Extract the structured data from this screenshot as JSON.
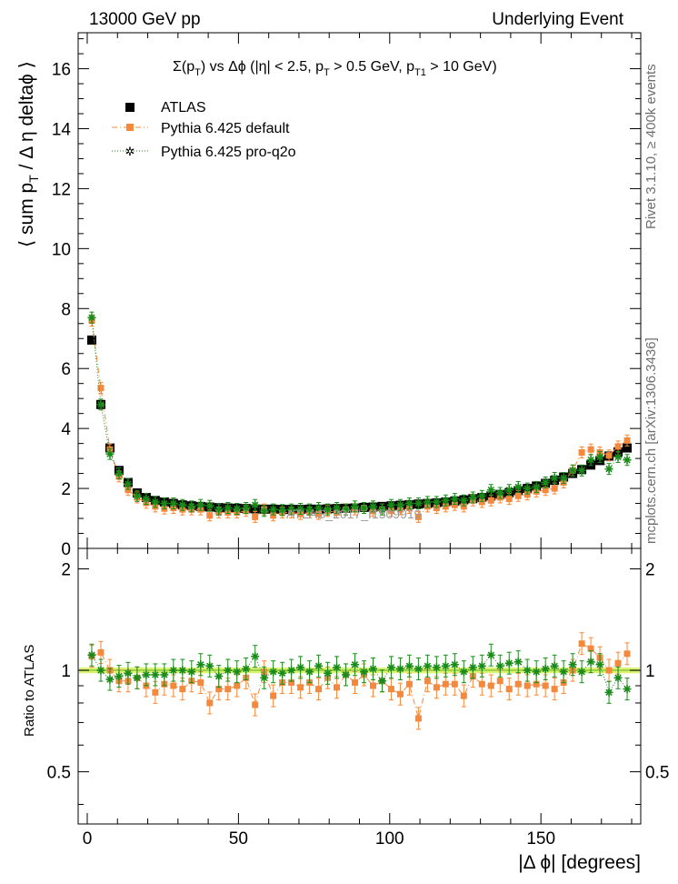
{
  "header": {
    "left": "13000 GeV pp",
    "right": "Underlying Event"
  },
  "side_labels": {
    "rivet": "Rivet 3.1.10, ≥ 400k events",
    "mcplots": "mcplots.cern.ch [arXiv:1306.3436]"
  },
  "watermark": "ATLAS_2017_I1509919",
  "chart_data": [
    {
      "type": "scatter",
      "title": "Σ(p_T) vs Δϕ (|η| < 2.5, p_T > 0.5 GeV, p_T1 > 10 GeV)",
      "title_parts": [
        "Σ(p",
        "T",
        ") vs Δϕ (|η| < 2.5, p",
        "T",
        " > 0.5 GeV, p",
        "T1",
        " > 10 GeV)"
      ],
      "ylabel": "⟨ sum p_T / Δ η deltaϕ ⟩",
      "ylabel_parts": [
        "⟨ sum p",
        "T",
        " / Δ η deltaϕ ⟩"
      ],
      "xlim": [
        -3,
        183
      ],
      "ylim": [
        0,
        17.2
      ],
      "yticks": [
        0,
        2,
        4,
        6,
        8,
        10,
        12,
        14,
        16
      ],
      "ytick_labels": [
        "0",
        "2",
        "4",
        "6",
        "8",
        "10",
        "12",
        "14",
        "16"
      ],
      "legend_position": "top-left",
      "series": [
        {
          "name": "ATLAS",
          "style": "square",
          "color": "#000000",
          "x": [
            1.5,
            4.5,
            7.5,
            10.5,
            13.5,
            16.5,
            19.5,
            22.5,
            25.5,
            28.5,
            31.5,
            34.5,
            37.5,
            40.5,
            43.5,
            46.5,
            49.5,
            52.5,
            55.5,
            58.5,
            61.5,
            64.5,
            67.5,
            70.5,
            73.5,
            76.5,
            79.5,
            82.5,
            85.5,
            88.5,
            91.5,
            94.5,
            97.5,
            100.5,
            103.5,
            106.5,
            109.5,
            112.5,
            115.5,
            118.5,
            121.5,
            124.5,
            127.5,
            130.5,
            133.5,
            136.5,
            139.5,
            142.5,
            145.5,
            148.5,
            151.5,
            154.5,
            157.5,
            160.5,
            163.5,
            166.5,
            169.5,
            172.5,
            175.5,
            178.5
          ],
          "y": [
            6.95,
            4.8,
            3.35,
            2.6,
            2.2,
            1.85,
            1.7,
            1.6,
            1.55,
            1.5,
            1.45,
            1.42,
            1.4,
            1.38,
            1.36,
            1.35,
            1.34,
            1.33,
            1.32,
            1.31,
            1.31,
            1.3,
            1.3,
            1.3,
            1.31,
            1.31,
            1.32,
            1.33,
            1.34,
            1.35,
            1.37,
            1.38,
            1.4,
            1.42,
            1.44,
            1.46,
            1.48,
            1.5,
            1.52,
            1.55,
            1.58,
            1.62,
            1.66,
            1.7,
            1.75,
            1.8,
            1.86,
            1.93,
            2.0,
            2.08,
            2.17,
            2.27,
            2.38,
            2.5,
            2.63,
            2.78,
            2.93,
            3.08,
            3.22,
            3.35
          ]
        },
        {
          "name": "Pythia 6.425 default",
          "style": "square-dashdot",
          "color": "#f5883a",
          "x": [
            1.5,
            4.5,
            7.5,
            10.5,
            13.5,
            16.5,
            19.5,
            22.5,
            25.5,
            28.5,
            31.5,
            34.5,
            37.5,
            40.5,
            43.5,
            46.5,
            49.5,
            52.5,
            55.5,
            58.5,
            61.5,
            64.5,
            67.5,
            70.5,
            73.5,
            76.5,
            79.5,
            82.5,
            85.5,
            88.5,
            91.5,
            94.5,
            97.5,
            100.5,
            103.5,
            106.5,
            109.5,
            112.5,
            115.5,
            118.5,
            121.5,
            124.5,
            127.5,
            130.5,
            133.5,
            136.5,
            139.5,
            142.5,
            145.5,
            148.5,
            151.5,
            154.5,
            157.5,
            160.5,
            163.5,
            166.5,
            169.5,
            172.5,
            175.5,
            178.5
          ],
          "y": [
            7.6,
            5.35,
            3.3,
            2.4,
            1.95,
            1.7,
            1.52,
            1.4,
            1.33,
            1.35,
            1.3,
            1.3,
            1.3,
            1.1,
            1.2,
            1.2,
            1.2,
            1.25,
            1.05,
            1.3,
            1.1,
            1.2,
            1.2,
            1.15,
            1.2,
            1.15,
            1.25,
            1.2,
            1.3,
            1.3,
            1.35,
            1.25,
            1.3,
            1.25,
            1.3,
            1.35,
            1.05,
            1.4,
            1.35,
            1.4,
            1.45,
            1.4,
            1.6,
            1.55,
            1.6,
            1.7,
            1.65,
            1.75,
            1.8,
            1.9,
            1.95,
            2.0,
            2.2,
            2.6,
            3.2,
            3.3,
            3.2,
            3.1,
            3.4,
            3.6
          ]
        },
        {
          "name": "Pythia 6.425 pro-q2o",
          "style": "star-dotted",
          "color": "#1a8a1a",
          "x": [
            1.5,
            4.5,
            7.5,
            10.5,
            13.5,
            16.5,
            19.5,
            22.5,
            25.5,
            28.5,
            31.5,
            34.5,
            37.5,
            40.5,
            43.5,
            46.5,
            49.5,
            52.5,
            55.5,
            58.5,
            61.5,
            64.5,
            67.5,
            70.5,
            73.5,
            76.5,
            79.5,
            82.5,
            85.5,
            88.5,
            91.5,
            94.5,
            97.5,
            100.5,
            103.5,
            106.5,
            109.5,
            112.5,
            115.5,
            118.5,
            121.5,
            124.5,
            127.5,
            130.5,
            133.5,
            136.5,
            139.5,
            142.5,
            145.5,
            148.5,
            151.5,
            154.5,
            157.5,
            160.5,
            163.5,
            166.5,
            169.5,
            172.5,
            175.5,
            178.5
          ],
          "y": [
            7.7,
            4.8,
            3.15,
            2.5,
            2.15,
            1.75,
            1.65,
            1.55,
            1.5,
            1.5,
            1.45,
            1.4,
            1.45,
            1.42,
            1.3,
            1.35,
            1.32,
            1.35,
            1.45,
            1.25,
            1.3,
            1.28,
            1.3,
            1.32,
            1.3,
            1.35,
            1.3,
            1.35,
            1.3,
            1.4,
            1.35,
            1.4,
            1.3,
            1.45,
            1.45,
            1.5,
            1.5,
            1.55,
            1.55,
            1.6,
            1.65,
            1.6,
            1.7,
            1.75,
            1.95,
            1.85,
            1.95,
            2.05,
            2.0,
            2.05,
            2.2,
            2.35,
            2.35,
            2.6,
            2.6,
            2.95,
            3.05,
            2.65,
            3.05,
            2.95
          ]
        }
      ]
    },
    {
      "type": "scatter",
      "ylabel": "Ratio to ATLAS",
      "xlabel": "|Δ ϕ| [degrees]",
      "xlim": [
        -3,
        183
      ],
      "ylim": [
        0.35,
        2.3
      ],
      "yticks": [
        0.5,
        1,
        2
      ],
      "ytick_labels": [
        "0.5",
        "1",
        "2"
      ],
      "xticks": [
        0,
        50,
        100,
        150
      ],
      "xtick_labels": [
        "0",
        "50",
        "100",
        "150"
      ],
      "reference_band": {
        "value": 1,
        "color": "#d5f05a",
        "line_color": "#8ac83a"
      },
      "series": [
        {
          "name": "Pythia 6.425 default",
          "style": "square-dashdot",
          "color": "#f5883a",
          "x": [
            1.5,
            4.5,
            7.5,
            10.5,
            13.5,
            16.5,
            19.5,
            22.5,
            25.5,
            28.5,
            31.5,
            34.5,
            37.5,
            40.5,
            43.5,
            46.5,
            49.5,
            52.5,
            55.5,
            58.5,
            61.5,
            64.5,
            67.5,
            70.5,
            73.5,
            76.5,
            79.5,
            82.5,
            85.5,
            88.5,
            91.5,
            94.5,
            97.5,
            100.5,
            103.5,
            106.5,
            109.5,
            112.5,
            115.5,
            118.5,
            121.5,
            124.5,
            127.5,
            130.5,
            133.5,
            136.5,
            139.5,
            142.5,
            145.5,
            148.5,
            151.5,
            154.5,
            157.5,
            160.5,
            163.5,
            166.5,
            169.5,
            172.5,
            175.5,
            178.5
          ],
          "y": [
            1.1,
            1.13,
            1.0,
            0.93,
            0.93,
            0.95,
            0.9,
            0.86,
            0.91,
            0.9,
            0.88,
            0.93,
            0.92,
            0.8,
            0.88,
            0.88,
            0.9,
            0.95,
            0.79,
            0.99,
            0.84,
            0.92,
            0.92,
            0.89,
            0.92,
            0.88,
            0.95,
            0.89,
            0.97,
            0.92,
            0.97,
            0.9,
            0.93,
            0.88,
            0.85,
            0.91,
            0.72,
            0.93,
            0.89,
            0.91,
            0.91,
            0.84,
            0.96,
            0.91,
            0.9,
            0.93,
            0.88,
            0.91,
            0.9,
            0.91,
            0.9,
            0.88,
            0.92,
            1.0,
            1.2,
            1.16,
            1.09,
            1.0,
            1.05,
            1.12
          ]
        },
        {
          "name": "Pythia 6.425 pro-q2o",
          "style": "star-dotted",
          "color": "#1a8a1a",
          "x": [
            1.5,
            4.5,
            7.5,
            10.5,
            13.5,
            16.5,
            19.5,
            22.5,
            25.5,
            28.5,
            31.5,
            34.5,
            37.5,
            40.5,
            43.5,
            46.5,
            49.5,
            52.5,
            55.5,
            58.5,
            61.5,
            64.5,
            67.5,
            70.5,
            73.5,
            76.5,
            79.5,
            82.5,
            85.5,
            88.5,
            91.5,
            94.5,
            97.5,
            100.5,
            103.5,
            106.5,
            109.5,
            112.5,
            115.5,
            118.5,
            121.5,
            124.5,
            127.5,
            130.5,
            133.5,
            136.5,
            139.5,
            142.5,
            145.5,
            148.5,
            151.5,
            154.5,
            157.5,
            160.5,
            163.5,
            166.5,
            169.5,
            172.5,
            175.5,
            178.5
          ],
          "y": [
            1.11,
            1.0,
            0.94,
            0.96,
            0.98,
            0.95,
            0.97,
            0.97,
            0.97,
            1.0,
            1.0,
            0.99,
            1.04,
            1.03,
            0.96,
            1.0,
            0.99,
            1.01,
            1.1,
            0.95,
            0.99,
            0.98,
            1.0,
            1.02,
            0.99,
            1.03,
            0.98,
            1.02,
            0.97,
            1.04,
            0.99,
            1.01,
            0.93,
            1.02,
            1.01,
            1.03,
            1.01,
            1.03,
            1.02,
            1.03,
            1.04,
            0.99,
            1.02,
            1.03,
            1.11,
            1.03,
            1.05,
            1.06,
            1.0,
            0.99,
            1.01,
            1.03,
            0.99,
            1.04,
            0.99,
            1.06,
            1.04,
            0.86,
            0.95,
            0.88
          ]
        }
      ]
    }
  ]
}
